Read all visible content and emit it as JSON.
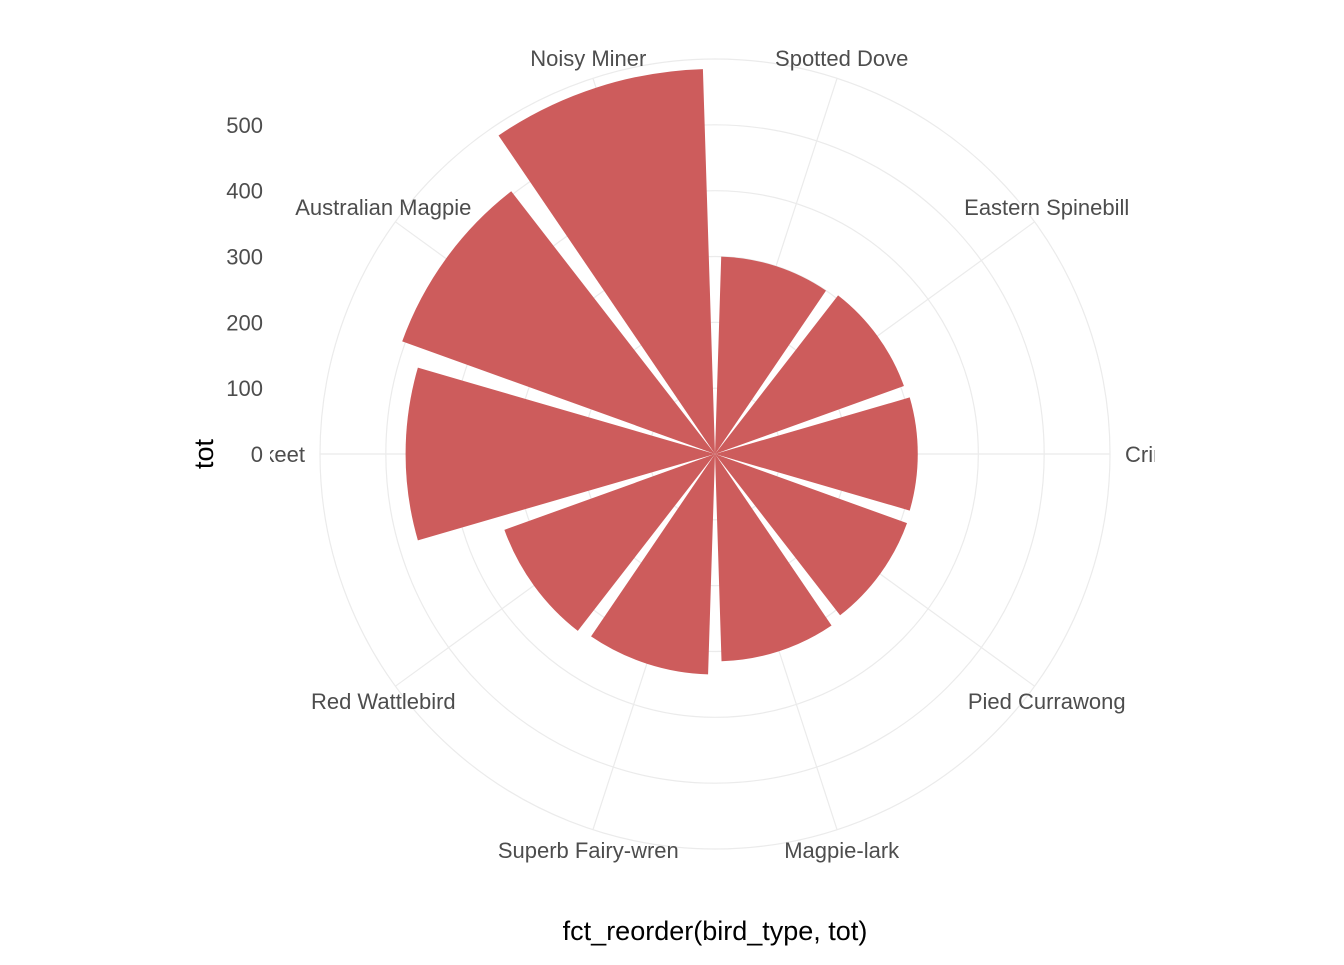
{
  "chart_data": {
    "type": "bar",
    "coord": "polar",
    "title": "",
    "xlabel": "fct_reorder(bird_type, tot)",
    "ylabel": "tot",
    "categories": [
      "Spotted Dove",
      "Eastern Spinebill",
      "Crimson Rosella",
      "Pied Currawong",
      "Magpie-lark",
      "Superb Fairy-wren",
      "Red Wattlebird",
      "Rainbow Lorikeet",
      "Australian Magpie",
      "Noisy Miner"
    ],
    "category_labels_shown": [
      "Spotted Dove",
      "Eastern Spinebill",
      "Crimson Ros",
      "Pied Currawong",
      "Magpie-lark",
      "Superb Fairy-wren",
      "Red Wattlebird",
      "ıbow Lorikeet",
      "Australian Magpie",
      "Noisy Miner"
    ],
    "values": [
      300,
      305,
      308,
      310,
      315,
      335,
      340,
      470,
      505,
      585
    ],
    "yticks": [
      0,
      100,
      200,
      300,
      400,
      500
    ],
    "ylim": [
      0,
      600
    ],
    "grid": true,
    "legend": "none",
    "bar_color": "#CD5C5C",
    "grid_color": "#EBEBEB",
    "panel_background": "#FFFFFF"
  }
}
